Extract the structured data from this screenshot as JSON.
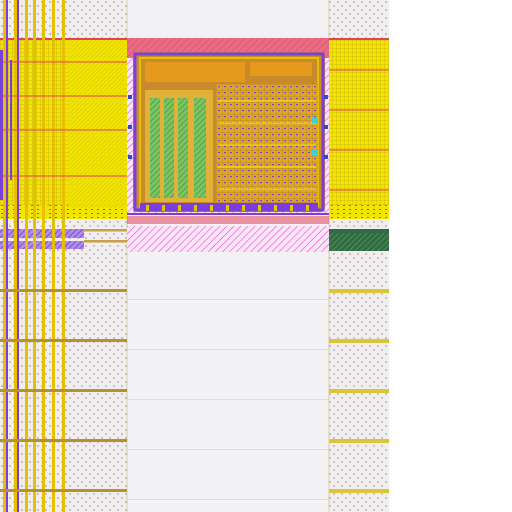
{
  "view": {
    "background": "#ffffff",
    "empty_region_color": "#ffffff"
  },
  "palette": {
    "substrate": "#f1eeee",
    "substrate_dots": "#a89bb8",
    "corridor": "#f2f2f4",
    "corridor_lines": "#dcdce4",
    "metal_yellow": "#f2e600",
    "metal_gold": "#d9a21a",
    "metal_orange": "#e59a1e",
    "metal_olive": "#b7b52a",
    "via_purple": "#7a3fd6",
    "poly_magenta": "#e64bd0",
    "poly_red": "#e0445a",
    "diff_green": "#55b84a",
    "diff_darkgreen": "#2f6b45",
    "contact_blue": "#2a49d8",
    "strap_tan": "#c9a14a",
    "cyan": "#3ad0e0"
  },
  "regions": [
    {
      "name": "left-bus-block",
      "kind": "metal-array"
    },
    {
      "name": "core-macro",
      "kind": "standard-cell-macro"
    },
    {
      "name": "right-bus-block",
      "kind": "metal-array"
    },
    {
      "name": "routing-corridor",
      "kind": "empty-channel"
    },
    {
      "name": "power-straps",
      "kind": "strap-rows"
    }
  ]
}
